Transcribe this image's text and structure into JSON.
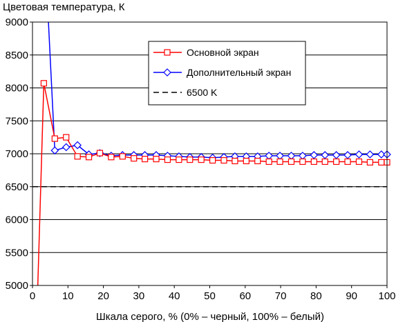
{
  "chart_data": {
    "type": "line",
    "title": "",
    "ylabel": "Цветовая температура, К",
    "xlabel": "Шкала серого, % (0% – черный, 100% – белый)",
    "xlim": [
      0,
      100
    ],
    "ylim": [
      5000,
      9000
    ],
    "x_ticks": [
      0,
      10,
      20,
      30,
      40,
      50,
      60,
      70,
      80,
      90,
      100
    ],
    "y_ticks": [
      5000,
      5500,
      6000,
      6500,
      7000,
      7500,
      8000,
      8500,
      9000
    ],
    "grid": "horizontal",
    "legend_position": "top-right",
    "series": [
      {
        "name": "Основной экран",
        "color": "#ff0000",
        "marker": "square",
        "x": [
          1.5,
          3.2,
          6.3,
          9.5,
          12.7,
          15.9,
          19.0,
          22.2,
          25.4,
          28.6,
          31.7,
          34.9,
          38.1,
          41.3,
          44.4,
          47.6,
          50.8,
          54.0,
          57.1,
          60.3,
          63.5,
          66.7,
          69.8,
          73.0,
          76.2,
          79.4,
          82.5,
          85.7,
          88.9,
          92.1,
          95.2,
          98.4,
          100
        ],
        "values": [
          5000,
          8070,
          7230,
          7250,
          6960,
          6950,
          7010,
          6950,
          6960,
          6930,
          6920,
          6920,
          6910,
          6910,
          6910,
          6910,
          6900,
          6900,
          6890,
          6890,
          6890,
          6880,
          6880,
          6880,
          6880,
          6880,
          6880,
          6880,
          6880,
          6880,
          6870,
          6870,
          6870
        ]
      },
      {
        "name": "Дополнительный экран",
        "color": "#0000ff",
        "marker": "diamond",
        "x": [
          4.5,
          6.3,
          9.5,
          12.7,
          15.9,
          19.0,
          22.2,
          25.4,
          28.6,
          31.7,
          34.9,
          38.1,
          41.3,
          44.4,
          47.6,
          50.8,
          54.0,
          57.1,
          60.3,
          63.5,
          66.7,
          69.8,
          73.0,
          76.2,
          79.4,
          82.5,
          85.7,
          88.9,
          92.1,
          95.2,
          98.4,
          100
        ],
        "values": [
          9000,
          7050,
          7100,
          7130,
          6990,
          7010,
          6970,
          6980,
          6980,
          6980,
          6980,
          6970,
          6960,
          6950,
          6950,
          6940,
          6950,
          6960,
          6960,
          6960,
          6970,
          6970,
          6970,
          6970,
          6980,
          6980,
          6980,
          6980,
          6990,
          6990,
          6990,
          6990
        ]
      },
      {
        "name": "6500 K",
        "color": "#000000",
        "marker": "none",
        "dashed": true,
        "x": [
          0,
          100
        ],
        "values": [
          6500,
          6500
        ]
      }
    ]
  }
}
